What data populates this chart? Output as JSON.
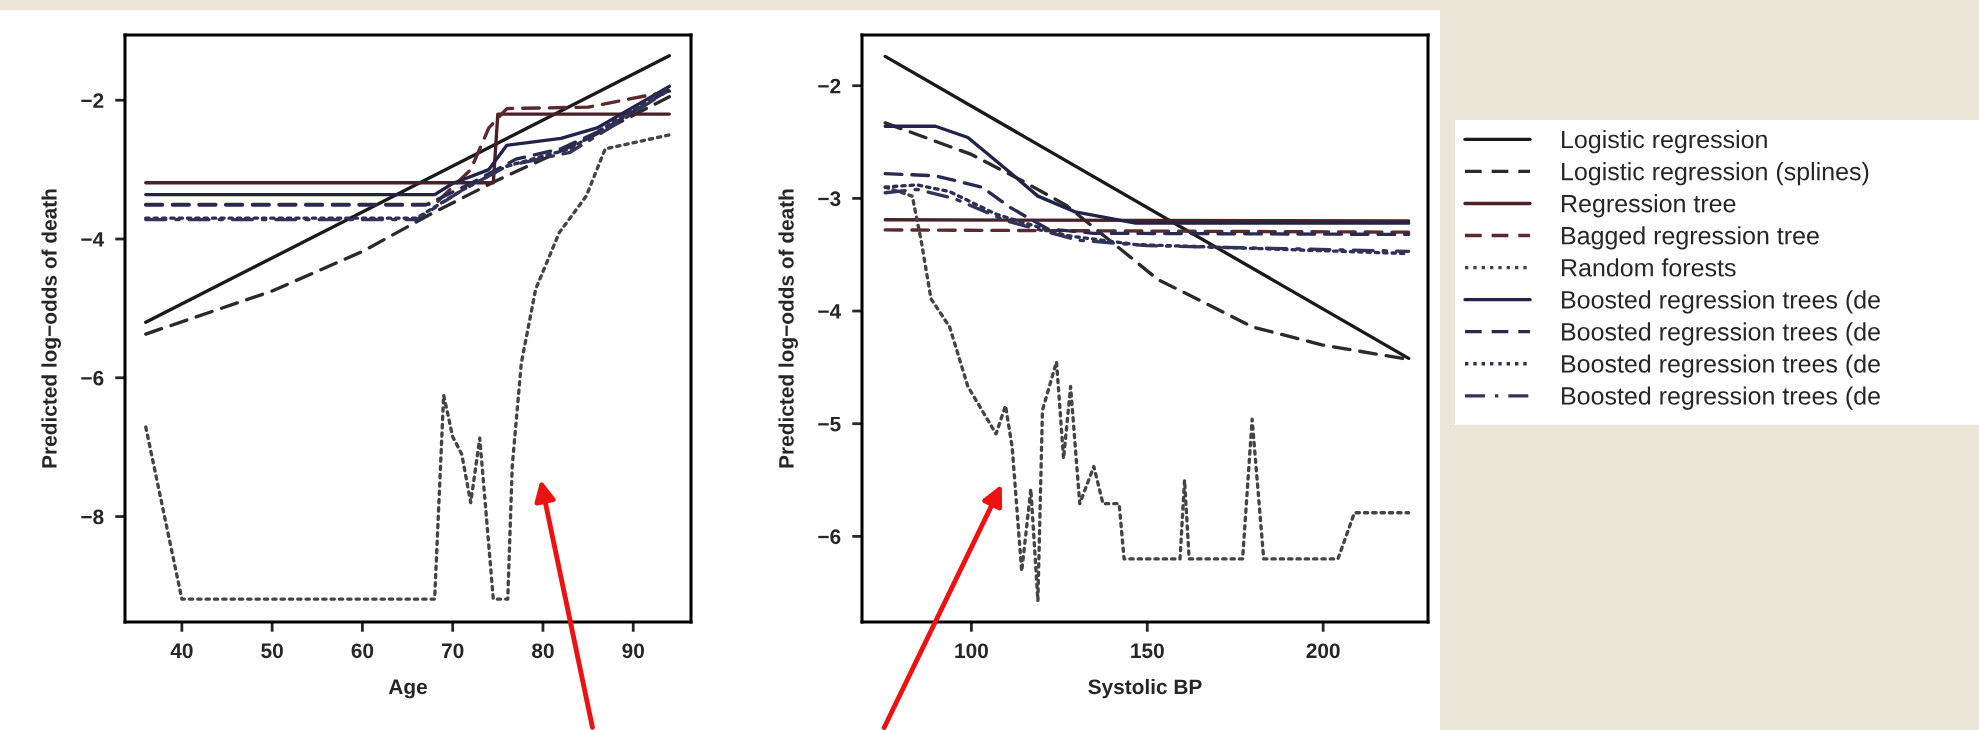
{
  "chart_data": [
    {
      "type": "line",
      "xlabel": "Age",
      "ylabel": "Predicted log−odds of death",
      "xlim": [
        33.7,
        96.4
      ],
      "ylim": [
        -9.52,
        -1.06
      ],
      "xticks": [
        40,
        50,
        60,
        70,
        80,
        90
      ],
      "yticks": [
        -8,
        -6,
        -4,
        -2
      ],
      "grid": false,
      "series": [
        {
          "color": "#1a1a1a",
          "line_style": "solid",
          "x": [
            36,
            94
          ],
          "values": [
            -5.2,
            -1.36
          ]
        },
        {
          "color": "#2a2a2a",
          "line_style": "dashed",
          "x": [
            36,
            50,
            60,
            68,
            75,
            85,
            94
          ],
          "values": [
            -5.37,
            -4.75,
            -4.18,
            -3.61,
            -3.15,
            -2.55,
            -1.95
          ]
        },
        {
          "color": "#4a2226",
          "line_style": "solid",
          "x": [
            36,
            67,
            74.5,
            75,
            94
          ],
          "values": [
            -3.19,
            -3.19,
            -3.19,
            -2.2,
            -2.2
          ]
        },
        {
          "color": "#5a2a2e",
          "line_style": "dashed",
          "x": [
            36,
            68,
            72,
            74,
            76,
            85,
            94
          ],
          "values": [
            -3.5,
            -3.5,
            -3.0,
            -2.4,
            -2.12,
            -2.1,
            -1.87
          ]
        },
        {
          "color": "#444444",
          "line_style": "dotted",
          "x": [
            36,
            40,
            68,
            69,
            70,
            71,
            72,
            73,
            74.5,
            76.1,
            76.6,
            77.6,
            79.2,
            81.8,
            84.8,
            86.9,
            94
          ],
          "values": [
            -6.71,
            -9.19,
            -9.19,
            -6.25,
            -6.85,
            -7.1,
            -7.8,
            -6.87,
            -9.19,
            -9.19,
            -7.27,
            -5.79,
            -4.72,
            -3.91,
            -3.38,
            -2.7,
            -2.5
          ]
        },
        {
          "color": "#23234a",
          "line_style": "solid",
          "x": [
            36,
            68,
            70,
            74,
            76,
            82,
            86,
            90,
            94
          ],
          "values": [
            -3.36,
            -3.36,
            -3.2,
            -3.0,
            -2.65,
            -2.55,
            -2.4,
            -2.1,
            -1.8
          ]
        },
        {
          "color": "#2a2a50",
          "line_style": "dashed",
          "x": [
            36,
            67,
            72,
            77,
            82,
            87,
            94
          ],
          "values": [
            -3.51,
            -3.51,
            -3.2,
            -2.85,
            -2.7,
            -2.4,
            -1.85
          ]
        },
        {
          "color": "#2e2e55",
          "line_style": "dotted",
          "x": [
            36,
            66,
            71,
            76,
            83,
            88,
            94
          ],
          "values": [
            -3.7,
            -3.7,
            -3.3,
            -2.95,
            -2.7,
            -2.3,
            -1.8
          ]
        },
        {
          "color": "#33335a",
          "line_style": "dashdot",
          "x": [
            36,
            66,
            71,
            76,
            83,
            88,
            94
          ],
          "values": [
            -3.72,
            -3.72,
            -3.3,
            -2.95,
            -2.75,
            -2.35,
            -1.85
          ]
        }
      ]
    },
    {
      "type": "line",
      "xlabel": "Systolic BP",
      "ylabel": "Predicted log−odds of death",
      "xlim": [
        68.9,
        229.8
      ],
      "ylim": [
        -6.76,
        -1.55
      ],
      "xticks": [
        100,
        150,
        200
      ],
      "yticks": [
        -6,
        -5,
        -4,
        -3,
        -2
      ],
      "grid": false,
      "legend": "right",
      "series": [
        {
          "name": "Logistic regression",
          "color": "#1a1a1a",
          "line_style": "solid",
          "x": [
            75.5,
            224.3
          ],
          "values": [
            -1.74,
            -4.42
          ]
        },
        {
          "name": "Logistic regression (splines)",
          "color": "#2a2a2a",
          "line_style": "dashed",
          "x": [
            75.5,
            100,
            113.6,
            126.9,
            140,
            153,
            166.5,
            179.8,
            199.6,
            224.3
          ],
          "values": [
            -2.33,
            -2.61,
            -2.83,
            -3.06,
            -3.39,
            -3.72,
            -3.93,
            -4.14,
            -4.3,
            -4.43
          ]
        },
        {
          "name": "Regression tree",
          "color": "#4a2226",
          "line_style": "solid",
          "x": [
            75.5,
            224.3
          ],
          "values": [
            -3.19,
            -3.2
          ]
        },
        {
          "name": "Bagged regression tree",
          "color": "#5a2a2e",
          "line_style": "dashed",
          "x": [
            75.5,
            224.3
          ],
          "values": [
            -3.28,
            -3.3
          ]
        },
        {
          "name": "Random forests",
          "color": "#444444",
          "line_style": "dotted",
          "x": [
            75.5,
            83.2,
            85.8,
            88.5,
            93.8,
            99,
            107,
            109.7,
            111.6,
            114.3,
            116.9,
            118.9,
            120.2,
            124.2,
            126.2,
            128.2,
            130.8,
            134.8,
            137.4,
            142,
            143.4,
            159.3,
            160.6,
            161.9,
            177.1,
            179.8,
            183.1,
            204.2,
            208.9,
            224.3
          ],
          "values": [
            -2.9,
            -2.98,
            -3.39,
            -3.89,
            -4.14,
            -4.67,
            -5.09,
            -4.84,
            -5.21,
            -6.31,
            -5.58,
            -6.57,
            -4.88,
            -4.45,
            -5.31,
            -4.67,
            -5.71,
            -5.38,
            -5.71,
            -5.71,
            -6.2,
            -6.2,
            -5.5,
            -6.2,
            -6.2,
            -4.96,
            -6.2,
            -6.2,
            -5.79,
            -5.79
          ]
        },
        {
          "name": "Boosted regression trees (de",
          "color": "#23234a",
          "line_style": "solid",
          "x": [
            75.5,
            89.8,
            99,
            111,
            118.9,
            129.5,
            146.7,
            224.3
          ],
          "values": [
            -2.36,
            -2.36,
            -2.46,
            -2.77,
            -2.98,
            -3.12,
            -3.22,
            -3.22
          ]
        },
        {
          "name": "Boosted regression trees (de",
          "color": "#2a2a50",
          "line_style": "dashed",
          "x": [
            75.5,
            89.8,
            103,
            111,
            121.6,
            134.8,
            224.3
          ],
          "values": [
            -2.78,
            -2.8,
            -2.9,
            -3.08,
            -3.27,
            -3.31,
            -3.32
          ]
        },
        {
          "name": "Boosted regression trees (de",
          "color": "#2e2e55",
          "line_style": "dotted",
          "x": [
            75.5,
            84.5,
            93.8,
            107,
            126.9,
            146.7,
            166.5,
            224.3
          ],
          "values": [
            -2.9,
            -2.88,
            -2.94,
            -3.14,
            -3.33,
            -3.41,
            -3.43,
            -3.49
          ]
        },
        {
          "name": "Boosted regression trees (de",
          "color": "#33335a",
          "line_style": "dashdot",
          "x": [
            75.5,
            84.5,
            95,
            110,
            130,
            150,
            224.3
          ],
          "values": [
            -2.95,
            -2.92,
            -3.0,
            -3.2,
            -3.37,
            -3.42,
            -3.47
          ]
        }
      ]
    }
  ]
}
